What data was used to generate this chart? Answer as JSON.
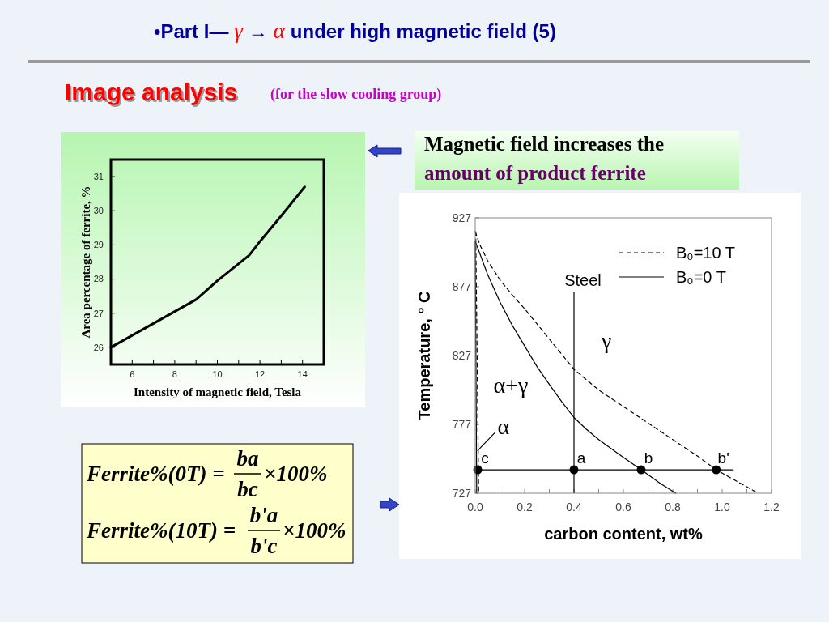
{
  "chart_data": [
    {
      "type": "other",
      "title": "•Part I— γ → α under high magnetic field (5)",
      "subtitle": "Image analysis",
      "annotations": [
        "(for the slow cooling group)"
      ]
    },
    {
      "type": "line",
      "xlabel": "Intensity of magnetic field, Tesla",
      "ylabel": "Area percentage of ferrite, %",
      "xlim": [
        5,
        15
      ],
      "ylim": [
        25.5,
        31.5
      ],
      "xticks": [
        6,
        {
          "value": 7,
          "label": null
        },
        8,
        {
          "value": 9,
          "label": null
        },
        10,
        {
          "value": 11,
          "label": null
        },
        12,
        {
          "value": 13,
          "label": null
        },
        14
      ],
      "yticks": [
        26,
        27,
        28,
        29,
        30,
        31
      ],
      "x": [
        5,
        6,
        7,
        8,
        9,
        10,
        11,
        11.5,
        12,
        13,
        14.1
      ],
      "values": [
        26.0,
        26.35,
        26.7,
        27.05,
        27.4,
        27.95,
        28.45,
        28.7,
        29.1,
        29.85,
        30.7
      ],
      "color": "#000000"
    },
    {
      "type": "other",
      "annotations": [
        "Magnetic field increases the",
        "amount of product ferrite"
      ]
    },
    {
      "type": "line",
      "xlabel": "carbon content, wt%",
      "ylabel": "Temperature, ° C",
      "xlim": [
        0,
        1.2
      ],
      "ylim": [
        727,
        927
      ],
      "xticks": [
        {
          "value": 0,
          "label": "0.0"
        },
        {
          "value": 0.1,
          "label": null
        },
        0.2,
        {
          "value": 0.3,
          "label": null
        },
        0.4,
        {
          "value": 0.5,
          "label": null
        },
        0.6,
        {
          "value": 0.7,
          "label": null
        },
        0.8,
        {
          "value": 0.9,
          "label": null
        },
        {
          "value": 1,
          "label": "1.0"
        },
        {
          "value": 1.1,
          "label": null
        },
        1.2
      ],
      "yticks": [
        727,
        777,
        827,
        877,
        927
      ],
      "legend": "top right",
      "series": [
        {
          "name": "B₀=10 T",
          "color": "#000000",
          "line_style": "dashed",
          "x": [
            0,
            0.02,
            0.05,
            0.1,
            0.15,
            0.2,
            0.25,
            0.3,
            0.35,
            0.4,
            0.5,
            0.6,
            0.7,
            0.8,
            0.9,
            0.976,
            1.146
          ],
          "values": [
            917,
            907,
            896,
            882,
            871,
            861,
            850,
            839,
            828,
            817,
            802,
            790,
            778,
            766,
            754,
            744,
            727
          ]
        },
        {
          "name": "B₀=0 T",
          "color": "#000000",
          "line_style": "solid",
          "x": [
            0,
            0.05,
            0.1,
            0.15,
            0.2,
            0.25,
            0.3,
            0.35,
            0.4,
            0.45,
            0.5,
            0.6,
            0.672,
            0.75,
            0.812
          ],
          "values": [
            910,
            886,
            866,
            849,
            834,
            819,
            806,
            793.5,
            782,
            773.5,
            766,
            753,
            744,
            734,
            727
          ]
        },
        {
          "color": "#000000",
          "line_style": "solid",
          "x": [
            0,
            0.006
          ],
          "values": [
            910,
            727
          ]
        },
        {
          "color": "#000000",
          "line_style": "dashed",
          "x": [
            0.002,
            0.014
          ],
          "values": [
            917,
            727
          ]
        },
        {
          "color": "#000000",
          "line_style": "solid",
          "x": [
            0.01,
            1.045
          ],
          "values": [
            744,
            744
          ]
        },
        {
          "type": "scatter",
          "color": "#000000",
          "marker": "circle",
          "x": [
            0.01,
            0.4,
            0.672,
            0.976
          ],
          "values": [
            744,
            744,
            744,
            744
          ]
        },
        {
          "color": "#000000",
          "line_style": "solid",
          "x": [
            0.01,
            0.08
          ],
          "values": [
            758,
            771
          ]
        }
      ],
      "ref_lines": [
        {
          "axis": "x",
          "value": 0.4,
          "label": "Steel",
          "color": "#000000"
        }
      ],
      "annotations": [
        "α+γ",
        "γ",
        "α",
        {
          "text": "c",
          "x": 0.01,
          "y": 744
        },
        {
          "text": "a",
          "x": 0.4,
          "y": 744
        },
        {
          "text": "b",
          "x": 0.672,
          "y": 744
        },
        {
          "text": "b'",
          "x": 0.976,
          "y": 744
        }
      ]
    },
    {
      "type": "other",
      "annotations": [
        "Ferrite%(0T) =",
        "ba",
        "bc",
        "×100%",
        "Ferrite%(10T) =",
        "b'a",
        "b'c",
        "×100%"
      ]
    }
  ]
}
